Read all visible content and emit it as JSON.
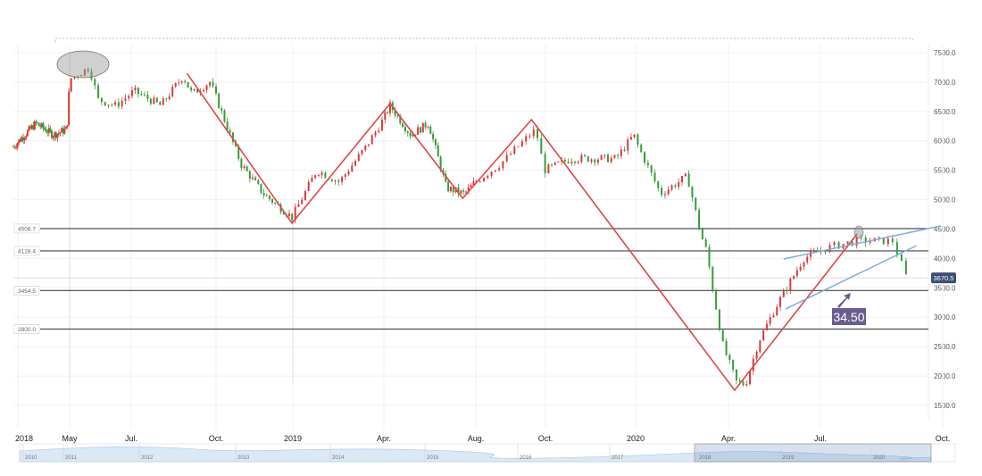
{
  "chart_data": {
    "type": "candlestick",
    "title": "",
    "x_unit": "months since Jan 2018",
    "y_ticks": [
      7500,
      7000,
      6500,
      6000,
      5500,
      5000,
      4500,
      4000,
      3500,
      3000,
      2500,
      2000,
      1500
    ],
    "ylim": [
      1500,
      7500
    ],
    "x_ticks": [
      {
        "t": 0,
        "label": "2018"
      },
      {
        "t": 4,
        "label": "May"
      },
      {
        "t": 6,
        "label": "Jul."
      },
      {
        "t": 9,
        "label": "Oct."
      },
      {
        "t": 12,
        "label": "2019"
      },
      {
        "t": 15,
        "label": "Apr."
      },
      {
        "t": 19,
        "label": "Aug."
      },
      {
        "t": 21,
        "label": "Oct."
      },
      {
        "t": 24,
        "label": "2020"
      },
      {
        "t": 27,
        "label": "Apr."
      },
      {
        "t": 30,
        "label": "Jul."
      },
      {
        "t": 33,
        "label": "Oct."
      }
    ],
    "price_path": [
      [
        -0.35,
        5900
      ],
      [
        1.4,
        6300
      ],
      [
        2.75,
        6100
      ],
      [
        3.8,
        6200
      ],
      [
        4.0,
        7050
      ],
      [
        4.64,
        7250
      ],
      [
        4.93,
        6700
      ],
      [
        5.5,
        6600
      ],
      [
        6.1,
        6850
      ],
      [
        7.04,
        6600
      ],
      [
        7.83,
        7100
      ],
      [
        8.15,
        6800
      ],
      [
        8.78,
        7000
      ],
      [
        9.98,
        5600
      ],
      [
        10.85,
        5100
      ],
      [
        11.97,
        4700
      ],
      [
        12.79,
        5500
      ],
      [
        13.53,
        5300
      ],
      [
        14.41,
        5900
      ],
      [
        15.27,
        6600
      ],
      [
        16.17,
        6100
      ],
      [
        16.94,
        6300
      ],
      [
        17.72,
        5200
      ],
      [
        18.5,
        5100
      ],
      [
        19.69,
        5600
      ],
      [
        20.72,
        6200
      ],
      [
        20.97,
        5500
      ],
      [
        21.86,
        5700
      ],
      [
        23.35,
        5700
      ],
      [
        23.94,
        6100
      ],
      [
        24.09,
        5900
      ],
      [
        24.81,
        5100
      ],
      [
        25.67,
        5400
      ],
      [
        26.11,
        4400
      ],
      [
        26.31,
        4100
      ],
      [
        26.45,
        3600
      ],
      [
        26.83,
        2500
      ],
      [
        27.26,
        1900
      ],
      [
        27.55,
        1850
      ],
      [
        27.99,
        2600
      ],
      [
        28.57,
        3200
      ],
      [
        29.45,
        4000
      ],
      [
        30.26,
        4200
      ],
      [
        30.9,
        4300
      ],
      [
        31.77,
        4300
      ],
      [
        32.1,
        3700
      ]
    ],
    "horizontal_levels": [
      {
        "value": 4508.7,
        "label": "4508.7"
      },
      {
        "value": 4128.4,
        "label": "4128.4"
      },
      {
        "value": 3454.5,
        "label": "3454.5"
      },
      {
        "value": 2800.0,
        "label": "2800.0"
      }
    ],
    "current_price": {
      "value": 3670.5,
      "label": "3670.5"
    },
    "pattern_lines": [
      [
        7.97,
        7150
      ],
      [
        11.97,
        4600
      ],
      [
        15.27,
        6634
      ],
      [
        18.43,
        5024
      ],
      [
        20.6,
        6361
      ],
      [
        27.2,
        1758
      ],
      [
        30.9,
        4416
      ]
    ],
    "channel_lines": [
      [
        [
          28.8,
          3991
        ],
        [
          32.95,
          4553
        ]
      ],
      [
        [
          28.86,
          3140
        ],
        [
          32.36,
          4219
        ]
      ]
    ],
    "annotation": {
      "label": "34.50"
    },
    "navigator": {
      "years": [
        "2010",
        "2011",
        "2012",
        "2013",
        "2014",
        "2015",
        "2016",
        "2017",
        "2018",
        "2019",
        "2020"
      ]
    },
    "colors": {
      "up": "#d63b3b",
      "down": "#3a9a3a",
      "pattern": "#e04646",
      "channel": "#7aaee0",
      "annotation": "#6a5c8e",
      "price_tag": "#3b4f75"
    }
  }
}
